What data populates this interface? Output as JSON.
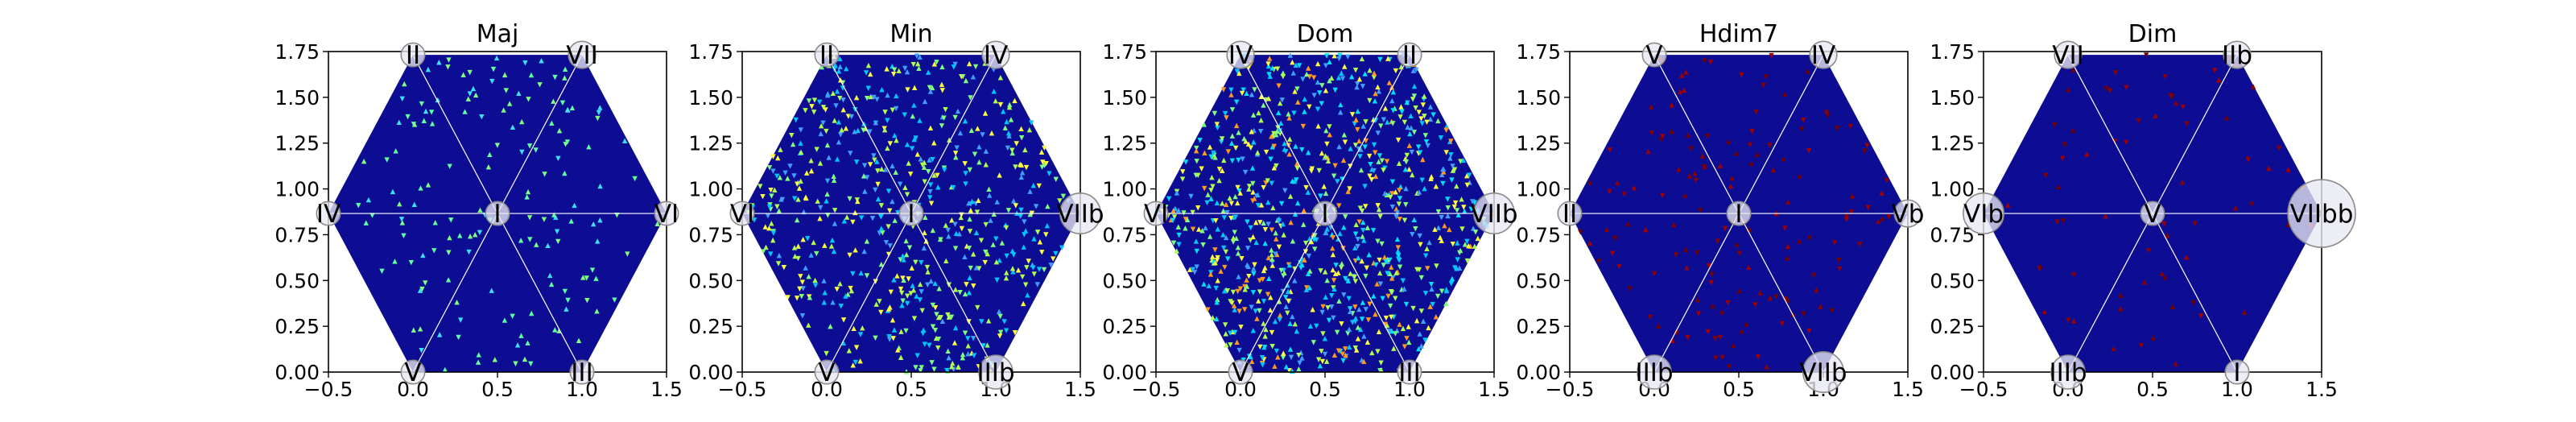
{
  "figure": {
    "background": "#ffffff",
    "plot_fill": "#0a0a8f",
    "hex_fill": "#0d0d94",
    "line_color": "#ffffff"
  },
  "chart_data": [
    {
      "type": "heatmap",
      "title": "Maj",
      "xlim": [
        -0.5,
        1.5
      ],
      "ylim": [
        0,
        1.75
      ],
      "xticks": [
        "−0.5",
        "0.0",
        "0.5",
        "1.0",
        "1.5"
      ],
      "yticks": [
        "0.00",
        "0.25",
        "0.50",
        "0.75",
        "1.00",
        "1.25",
        "1.50",
        "1.75"
      ],
      "nodes": [
        {
          "label": "I",
          "x": 0.5,
          "y": 0.866,
          "r": 0.07
        },
        {
          "label": "II",
          "x": 0.0,
          "y": 1.732,
          "r": 0.07
        },
        {
          "label": "VII",
          "x": 1.0,
          "y": 1.732,
          "r": 0.08
        },
        {
          "label": "IV",
          "x": -0.5,
          "y": 0.866,
          "r": 0.07
        },
        {
          "label": "VI",
          "x": 1.5,
          "y": 0.866,
          "r": 0.07
        },
        {
          "label": "V",
          "x": 0.0,
          "y": 0.0,
          "r": 0.07
        },
        {
          "label": "III",
          "x": 1.0,
          "y": 0.0,
          "r": 0.07
        }
      ],
      "density": {
        "count": 160,
        "palette": [
          "#7fff7f",
          "#5fffa0",
          "#3fe0ff"
        ]
      }
    },
    {
      "type": "heatmap",
      "title": "Min",
      "xlim": [
        -0.5,
        1.5
      ],
      "ylim": [
        0,
        1.75
      ],
      "xticks": [
        "−0.5",
        "0.0",
        "0.5",
        "1.0",
        "1.5"
      ],
      "yticks": [
        "0.00",
        "0.25",
        "0.50",
        "0.75",
        "1.00",
        "1.25",
        "1.50",
        "1.75"
      ],
      "nodes": [
        {
          "label": "I",
          "x": 0.5,
          "y": 0.866,
          "r": 0.07
        },
        {
          "label": "II",
          "x": 0.0,
          "y": 1.732,
          "r": 0.07
        },
        {
          "label": "IV",
          "x": 1.0,
          "y": 1.732,
          "r": 0.08
        },
        {
          "label": "VI",
          "x": -0.5,
          "y": 0.866,
          "r": 0.07
        },
        {
          "label": "VIIb",
          "x": 1.5,
          "y": 0.866,
          "r": 0.12
        },
        {
          "label": "V",
          "x": 0.0,
          "y": 0.0,
          "r": 0.07
        },
        {
          "label": "IIIb",
          "x": 1.0,
          "y": 0.0,
          "r": 0.1
        }
      ],
      "density": {
        "count": 620,
        "palette": [
          "#00c8ff",
          "#7fff7f",
          "#3fa0ff",
          "#ffff40",
          "#b0ff50"
        ]
      }
    },
    {
      "type": "heatmap",
      "title": "Dom",
      "xlim": [
        -0.5,
        1.5
      ],
      "ylim": [
        0,
        1.75
      ],
      "xticks": [
        "−0.5",
        "0.0",
        "0.5",
        "1.0",
        "1.5"
      ],
      "yticks": [
        "0.00",
        "0.25",
        "0.50",
        "0.75",
        "1.00",
        "1.25",
        "1.50",
        "1.75"
      ],
      "nodes": [
        {
          "label": "I",
          "x": 0.5,
          "y": 0.866,
          "r": 0.07
        },
        {
          "label": "IV",
          "x": 0.0,
          "y": 1.732,
          "r": 0.08
        },
        {
          "label": "II",
          "x": 1.0,
          "y": 1.732,
          "r": 0.07
        },
        {
          "label": "VI",
          "x": -0.5,
          "y": 0.866,
          "r": 0.07
        },
        {
          "label": "VIIb",
          "x": 1.5,
          "y": 0.866,
          "r": 0.12
        },
        {
          "label": "V",
          "x": 0.0,
          "y": 0.0,
          "r": 0.07
        },
        {
          "label": "III",
          "x": 1.0,
          "y": 0.0,
          "r": 0.07
        }
      ],
      "density": {
        "count": 900,
        "palette": [
          "#00c8ff",
          "#3fa0ff",
          "#7fff7f",
          "#ffff40",
          "#ff9a20",
          "#b0ff50",
          "#00e0ff"
        ]
      }
    },
    {
      "type": "heatmap",
      "title": "Hdim7",
      "xlim": [
        -0.5,
        1.5
      ],
      "ylim": [
        0,
        1.75
      ],
      "xticks": [
        "−0.5",
        "0.0",
        "0.5",
        "1.0",
        "1.5"
      ],
      "yticks": [
        "0.00",
        "0.25",
        "0.50",
        "0.75",
        "1.00",
        "1.25",
        "1.50",
        "1.75"
      ],
      "nodes": [
        {
          "label": "I",
          "x": 0.5,
          "y": 0.866,
          "r": 0.07
        },
        {
          "label": "V",
          "x": 0.0,
          "y": 1.732,
          "r": 0.07
        },
        {
          "label": "IV",
          "x": 1.0,
          "y": 1.732,
          "r": 0.08
        },
        {
          "label": "II",
          "x": -0.5,
          "y": 0.866,
          "r": 0.07
        },
        {
          "label": "Vb",
          "x": 1.5,
          "y": 0.866,
          "r": 0.08
        },
        {
          "label": "IIIb",
          "x": 0.0,
          "y": 0.0,
          "r": 0.1
        },
        {
          "label": "VIIb",
          "x": 1.0,
          "y": 0.0,
          "r": 0.12
        }
      ],
      "density": {
        "count": 150,
        "palette": [
          "#8a0000",
          "#a00000",
          "#700000"
        ]
      }
    },
    {
      "type": "heatmap",
      "title": "Dim",
      "xlim": [
        -0.5,
        1.5
      ],
      "ylim": [
        0,
        1.75
      ],
      "xticks": [
        "−0.5",
        "0.0",
        "0.5",
        "1.0",
        "1.5"
      ],
      "yticks": [
        "0.00",
        "0.25",
        "0.50",
        "0.75",
        "1.00",
        "1.25",
        "1.50",
        "1.75"
      ],
      "nodes": [
        {
          "label": "V",
          "x": 0.5,
          "y": 0.866,
          "r": 0.07
        },
        {
          "label": "VII",
          "x": 0.0,
          "y": 1.732,
          "r": 0.08
        },
        {
          "label": "IIb",
          "x": 1.0,
          "y": 1.732,
          "r": 0.08
        },
        {
          "label": "VIb",
          "x": -0.5,
          "y": 0.866,
          "r": 0.12
        },
        {
          "label": "VIIbb",
          "x": 1.5,
          "y": 0.866,
          "r": 0.2
        },
        {
          "label": "IIIb",
          "x": 0.0,
          "y": 0.0,
          "r": 0.1
        },
        {
          "label": "I",
          "x": 1.0,
          "y": 0.0,
          "r": 0.07
        }
      ],
      "density": {
        "count": 70,
        "palette": [
          "#8a0000",
          "#a00000",
          "#700000"
        ]
      }
    }
  ]
}
